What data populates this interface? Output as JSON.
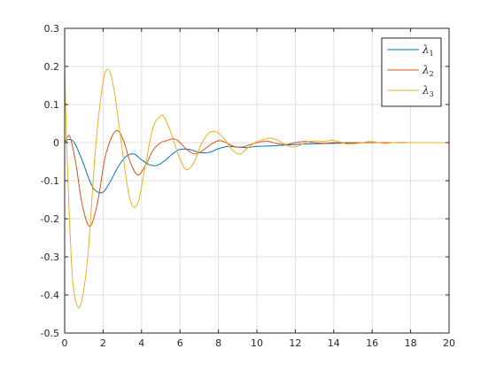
{
  "chart_data": {
    "type": "line",
    "title": "",
    "xlabel": "",
    "ylabel": "",
    "xlim": [
      0,
      20
    ],
    "ylim": [
      -0.5,
      0.3
    ],
    "grid": true,
    "legend_position": "top-right",
    "x_ticks": [
      "0",
      "2",
      "4",
      "6",
      "8",
      "10",
      "12",
      "14",
      "16",
      "18",
      "20"
    ],
    "y_ticks": [
      "-0.5",
      "-0.4",
      "-0.3",
      "-0.2",
      "-0.1",
      "0",
      "0.1",
      "0.2",
      "0.3"
    ],
    "series": [
      {
        "name": "λ1",
        "label_base": "λ",
        "label_sub": "1",
        "color": "#0072BD",
        "x": [
          0,
          0.2,
          0.5,
          0.9,
          1.3,
          1.6,
          2.0,
          2.4,
          2.8,
          3.2,
          3.6,
          4.0,
          4.4,
          4.8,
          5.2,
          5.6,
          6.0,
          6.5,
          7.0,
          7.5,
          8.0,
          8.5,
          9.0,
          9.5,
          10,
          11,
          12,
          13,
          14,
          15,
          16,
          17,
          18,
          19,
          20
        ],
        "y": [
          0,
          0.008,
          0.0,
          -0.045,
          -0.1,
          -0.126,
          -0.13,
          -0.1,
          -0.062,
          -0.036,
          -0.03,
          -0.045,
          -0.058,
          -0.06,
          -0.048,
          -0.03,
          -0.018,
          -0.018,
          -0.026,
          -0.026,
          -0.016,
          -0.01,
          -0.012,
          -0.013,
          -0.01,
          -0.008,
          -0.005,
          -0.003,
          -0.002,
          -0.001,
          0.0,
          0.0,
          0.0,
          0.0,
          0.0
        ]
      },
      {
        "name": "λ2",
        "label_base": "λ",
        "label_sub": "2",
        "color": "#D95319",
        "x": [
          0,
          0.15,
          0.3,
          0.6,
          0.9,
          1.3,
          1.7,
          2.1,
          2.5,
          2.8,
          3.1,
          3.4,
          3.8,
          4.2,
          4.6,
          5.0,
          5.3,
          5.7,
          6.0,
          6.4,
          6.8,
          7.2,
          7.6,
          8.0,
          8.4,
          8.8,
          9.2,
          9.6,
          10,
          10.5,
          11,
          11.5,
          12,
          12.5,
          13,
          13.5,
          14,
          15,
          16,
          17,
          18,
          19,
          20
        ],
        "y": [
          0,
          0.015,
          0.012,
          -0.06,
          -0.16,
          -0.22,
          -0.16,
          -0.04,
          0.02,
          0.03,
          0.0,
          -0.05,
          -0.085,
          -0.06,
          -0.02,
          0.0,
          0.005,
          0.01,
          0.0,
          -0.02,
          -0.03,
          -0.02,
          -0.005,
          0.005,
          0.0,
          -0.01,
          -0.012,
          -0.006,
          0.0,
          0.004,
          -0.002,
          -0.005,
          0.0,
          0.003,
          0.0,
          -0.002,
          0.0,
          0.0,
          0.0,
          0.0,
          0.0,
          0.0,
          0.0
        ]
      },
      {
        "name": "λ3",
        "label_base": "λ",
        "label_sub": "3",
        "color": "#EDB120",
        "x": [
          0,
          0.1,
          0.25,
          0.45,
          0.8,
          1.2,
          1.6,
          2.0,
          2.3,
          2.6,
          3.0,
          3.4,
          3.8,
          4.2,
          4.6,
          5.0,
          5.2,
          5.5,
          5.9,
          6.3,
          6.7,
          7.1,
          7.5,
          7.9,
          8.3,
          8.7,
          9.1,
          9.5,
          9.9,
          10.3,
          10.7,
          11.1,
          11.5,
          11.9,
          12.3,
          12.7,
          13.1,
          13.5,
          13.9,
          14.3,
          14.7,
          15.1,
          15.5,
          15.9,
          16.3,
          16.7,
          17.1,
          17.5,
          18,
          19,
          20
        ],
        "y": [
          0.21,
          0.0,
          -0.2,
          -0.38,
          -0.43,
          -0.3,
          -0.02,
          0.16,
          0.19,
          0.13,
          -0.02,
          -0.15,
          -0.16,
          -0.06,
          0.04,
          0.07,
          0.065,
          0.03,
          -0.03,
          -0.07,
          -0.055,
          -0.005,
          0.025,
          0.028,
          0.01,
          -0.018,
          -0.03,
          -0.015,
          0.0,
          0.008,
          0.012,
          0.006,
          -0.006,
          -0.012,
          -0.006,
          0.003,
          0.004,
          0.003,
          0.006,
          0.002,
          -0.004,
          -0.003,
          0.0,
          0.003,
          0.0,
          -0.002,
          0.0,
          0.001,
          0.0,
          0.0,
          0.0
        ]
      }
    ]
  }
}
